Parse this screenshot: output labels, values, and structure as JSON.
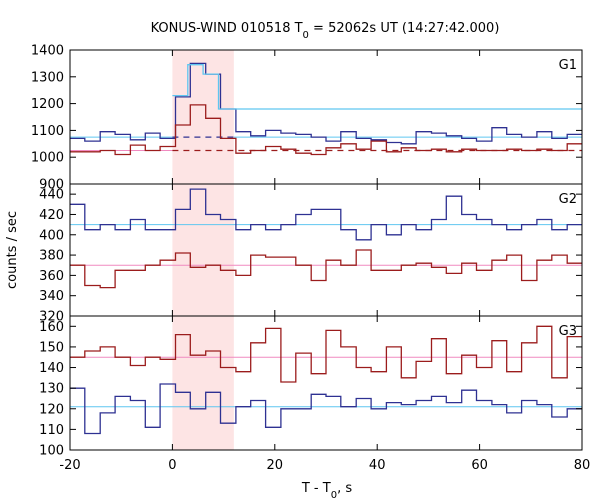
{
  "title": {
    "main": "KONUS-WIND 010518 T",
    "sub": "0",
    "rest": " = 52062s UT (14:27:42.000)"
  },
  "xlabel": {
    "main": "T - T",
    "sub": "0",
    "rest": ", s"
  },
  "ylabel": "counts / sec",
  "colors": {
    "red": "#9b1c1c",
    "blue": "#2e3192",
    "light_blue": "#5fc6f0",
    "pink": "#f08ac0",
    "shade": "#fde4e4"
  },
  "chart_data": [
    {
      "type": "line",
      "name": "G1",
      "xlim": [
        -20,
        80
      ],
      "ylim": [
        900,
        1400
      ],
      "yticks": [
        900,
        1000,
        1100,
        1200,
        1300,
        1400
      ],
      "xticks": [
        -20,
        0,
        20,
        40,
        60,
        80
      ],
      "shaded_interval": [
        0,
        12
      ],
      "bin_width": 2.944,
      "series": [
        {
          "color": "blue",
          "steps": [
            [
              -20.0,
              1070
            ],
            [
              -17.1,
              1060
            ],
            [
              -14.1,
              1095
            ],
            [
              -11.2,
              1085
            ],
            [
              -8.2,
              1065
            ],
            [
              -5.3,
              1090
            ],
            [
              -2.4,
              1070
            ],
            [
              0.6,
              1225
            ],
            [
              3.5,
              1350
            ],
            [
              6.5,
              1310
            ],
            [
              9.4,
              1180
            ],
            [
              12.4,
              1095
            ],
            [
              15.3,
              1080
            ],
            [
              18.2,
              1100
            ],
            [
              21.2,
              1090
            ],
            [
              24.1,
              1085
            ],
            [
              27.1,
              1075
            ],
            [
              30.0,
              1060
            ],
            [
              32.9,
              1095
            ],
            [
              35.9,
              1070
            ],
            [
              38.8,
              1065
            ],
            [
              41.8,
              1055
            ],
            [
              44.7,
              1050
            ],
            [
              47.6,
              1095
            ],
            [
              50.6,
              1090
            ],
            [
              53.5,
              1080
            ],
            [
              56.5,
              1070
            ],
            [
              59.4,
              1060
            ],
            [
              62.4,
              1110
            ],
            [
              65.3,
              1085
            ],
            [
              68.2,
              1075
            ],
            [
              71.2,
              1095
            ],
            [
              74.1,
              1070
            ],
            [
              77.1,
              1085
            ]
          ]
        },
        {
          "color": "light_blue",
          "steps": [
            [
              0,
              1230
            ],
            [
              3.0,
              1345
            ],
            [
              6.0,
              1310
            ],
            [
              9.0,
              1180
            ],
            [
              12,
              1180
            ]
          ]
        },
        {
          "color": "red",
          "steps": [
            [
              -20.0,
              1020
            ],
            [
              -17.1,
              1020
            ],
            [
              -14.1,
              1025
            ],
            [
              -11.2,
              1010
            ],
            [
              -8.2,
              1045
            ],
            [
              -5.3,
              1025
            ],
            [
              -2.4,
              1040
            ],
            [
              0.6,
              1120
            ],
            [
              3.5,
              1195
            ],
            [
              6.5,
              1145
            ],
            [
              9.4,
              1070
            ],
            [
              12.4,
              1015
            ],
            [
              15.3,
              1025
            ],
            [
              18.2,
              1040
            ],
            [
              21.2,
              1030
            ],
            [
              24.1,
              1015
            ],
            [
              27.1,
              1010
            ],
            [
              30.0,
              1035
            ],
            [
              32.9,
              1050
            ],
            [
              35.9,
              1030
            ],
            [
              38.8,
              1060
            ],
            [
              41.8,
              1020
            ],
            [
              44.7,
              1035
            ],
            [
              47.6,
              1025
            ],
            [
              50.6,
              1030
            ],
            [
              53.5,
              1020
            ],
            [
              56.5,
              1030
            ],
            [
              59.4,
              1025
            ],
            [
              62.4,
              1025
            ],
            [
              65.3,
              1030
            ],
            [
              68.2,
              1025
            ],
            [
              71.2,
              1030
            ],
            [
              74.1,
              1025
            ],
            [
              77.1,
              1050
            ]
          ]
        }
      ],
      "background_lines": [
        {
          "color": "light_blue",
          "y": 1075,
          "solid_ranges": [
            [
              -20,
              0
            ],
            [
              12,
              80
            ]
          ],
          "dashed_ranges": [
            [
              0,
              12
            ]
          ],
          "dashed_color": "blue"
        },
        {
          "color": "pink",
          "y": 1025,
          "solid_ranges": [
            [
              -20,
              0
            ]
          ],
          "dashed_ranges": [
            [
              0,
              80
            ]
          ],
          "dashed_color": "red"
        }
      ]
    },
    {
      "type": "line",
      "name": "G2",
      "xlim": [
        -20,
        80
      ],
      "ylim": [
        320,
        450
      ],
      "yticks": [
        320,
        340,
        360,
        380,
        400,
        420,
        440
      ],
      "xticks": [
        -20,
        0,
        20,
        40,
        60,
        80
      ],
      "shaded_interval": [
        0,
        12
      ],
      "series": [
        {
          "color": "blue",
          "steps": [
            [
              -20.0,
              430
            ],
            [
              -17.1,
              405
            ],
            [
              -14.1,
              410
            ],
            [
              -11.2,
              405
            ],
            [
              -8.2,
              415
            ],
            [
              -5.3,
              405
            ],
            [
              -2.4,
              405
            ],
            [
              0.6,
              425
            ],
            [
              3.5,
              445
            ],
            [
              6.5,
              420
            ],
            [
              9.4,
              415
            ],
            [
              12.4,
              405
            ],
            [
              15.3,
              410
            ],
            [
              18.2,
              405
            ],
            [
              21.2,
              410
            ],
            [
              24.1,
              420
            ],
            [
              27.1,
              425
            ],
            [
              30.0,
              425
            ],
            [
              32.9,
              405
            ],
            [
              35.9,
              395
            ],
            [
              38.8,
              410
            ],
            [
              41.8,
              400
            ],
            [
              44.7,
              410
            ],
            [
              47.6,
              405
            ],
            [
              50.6,
              415
            ],
            [
              53.5,
              438
            ],
            [
              56.5,
              420
            ],
            [
              59.4,
              415
            ],
            [
              62.4,
              410
            ],
            [
              65.3,
              405
            ],
            [
              68.2,
              410
            ],
            [
              71.2,
              415
            ],
            [
              74.1,
              405
            ],
            [
              77.1,
              410
            ]
          ]
        },
        {
          "color": "red",
          "steps": [
            [
              -20.0,
              370
            ],
            [
              -17.1,
              350
            ],
            [
              -14.1,
              348
            ],
            [
              -11.2,
              365
            ],
            [
              -8.2,
              365
            ],
            [
              -5.3,
              370
            ],
            [
              -2.4,
              375
            ],
            [
              0.6,
              382
            ],
            [
              3.5,
              368
            ],
            [
              6.5,
              370
            ],
            [
              9.4,
              365
            ],
            [
              12.4,
              360
            ],
            [
              15.3,
              380
            ],
            [
              18.2,
              378
            ],
            [
              21.2,
              378
            ],
            [
              24.1,
              370
            ],
            [
              27.1,
              355
            ],
            [
              30.0,
              375
            ],
            [
              32.9,
              370
            ],
            [
              35.9,
              385
            ],
            [
              38.8,
              365
            ],
            [
              41.8,
              365
            ],
            [
              44.7,
              370
            ],
            [
              47.6,
              372
            ],
            [
              50.6,
              368
            ],
            [
              53.5,
              362
            ],
            [
              56.5,
              372
            ],
            [
              59.4,
              365
            ],
            [
              62.4,
              375
            ],
            [
              65.3,
              380
            ],
            [
              68.2,
              355
            ],
            [
              71.2,
              375
            ],
            [
              74.1,
              380
            ],
            [
              77.1,
              372
            ]
          ]
        }
      ],
      "background_lines": [
        {
          "color": "light_blue",
          "y": 410,
          "solid_ranges": [
            [
              -20,
              80
            ]
          ]
        },
        {
          "color": "pink",
          "y": 370,
          "solid_ranges": [
            [
              -20,
              80
            ]
          ]
        }
      ]
    },
    {
      "type": "line",
      "name": "G3",
      "xlim": [
        -20,
        80
      ],
      "ylim": [
        100,
        165
      ],
      "yticks": [
        100,
        110,
        120,
        130,
        140,
        150,
        160
      ],
      "xticks": [
        -20,
        0,
        20,
        40,
        60,
        80
      ],
      "shaded_interval": [
        0,
        12
      ],
      "series": [
        {
          "color": "red",
          "steps": [
            [
              -20.0,
              145
            ],
            [
              -17.1,
              148
            ],
            [
              -14.1,
              150
            ],
            [
              -11.2,
              145
            ],
            [
              -8.2,
              141
            ],
            [
              -5.3,
              145
            ],
            [
              -2.4,
              144
            ],
            [
              0.6,
              156
            ],
            [
              3.5,
              146
            ],
            [
              6.5,
              148
            ],
            [
              9.4,
              140
            ],
            [
              12.4,
              138
            ],
            [
              15.3,
              152
            ],
            [
              18.2,
              159
            ],
            [
              21.2,
              133
            ],
            [
              24.1,
              147
            ],
            [
              27.1,
              137
            ],
            [
              30.0,
              158
            ],
            [
              32.9,
              150
            ],
            [
              35.9,
              140
            ],
            [
              38.8,
              138
            ],
            [
              41.8,
              150
            ],
            [
              44.7,
              135
            ],
            [
              47.6,
              143
            ],
            [
              50.6,
              154
            ],
            [
              53.5,
              137
            ],
            [
              56.5,
              146
            ],
            [
              59.4,
              140
            ],
            [
              62.4,
              153
            ],
            [
              65.3,
              138
            ],
            [
              68.2,
              152
            ],
            [
              71.2,
              160
            ],
            [
              74.1,
              135
            ],
            [
              77.1,
              155
            ]
          ]
        },
        {
          "color": "blue",
          "steps": [
            [
              -20.0,
              130
            ],
            [
              -17.1,
              108
            ],
            [
              -14.1,
              118
            ],
            [
              -11.2,
              126
            ],
            [
              -8.2,
              124
            ],
            [
              -5.3,
              111
            ],
            [
              -2.4,
              132
            ],
            [
              0.6,
              128
            ],
            [
              3.5,
              120
            ],
            [
              6.5,
              128
            ],
            [
              9.4,
              113
            ],
            [
              12.4,
              121
            ],
            [
              15.3,
              124
            ],
            [
              18.2,
              111
            ],
            [
              21.2,
              120
            ],
            [
              24.1,
              120
            ],
            [
              27.1,
              127
            ],
            [
              30.0,
              126
            ],
            [
              32.9,
              121
            ],
            [
              35.9,
              125
            ],
            [
              38.8,
              120
            ],
            [
              41.8,
              123
            ],
            [
              44.7,
              122
            ],
            [
              47.6,
              124
            ],
            [
              50.6,
              126
            ],
            [
              53.5,
              123
            ],
            [
              56.5,
              129
            ],
            [
              59.4,
              124
            ],
            [
              62.4,
              122
            ],
            [
              65.3,
              118
            ],
            [
              68.2,
              124
            ],
            [
              71.2,
              122
            ],
            [
              74.1,
              116
            ],
            [
              77.1,
              120
            ]
          ]
        }
      ],
      "background_lines": [
        {
          "color": "pink",
          "y": 145,
          "solid_ranges": [
            [
              -20,
              80
            ]
          ]
        },
        {
          "color": "light_blue",
          "y": 121,
          "solid_ranges": [
            [
              -20,
              80
            ]
          ]
        }
      ]
    }
  ]
}
